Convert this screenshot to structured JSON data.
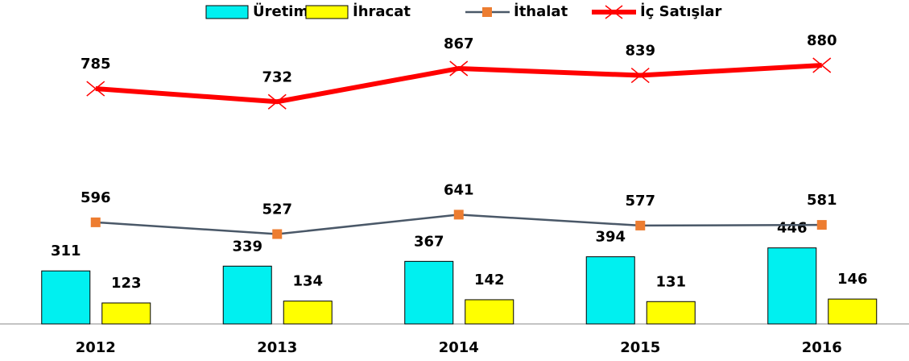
{
  "chart_data": {
    "type": "bar_line",
    "categories": [
      "2012",
      "2013",
      "2014",
      "2015",
      "2016"
    ],
    "series": [
      {
        "name": "Üretim",
        "type": "bar",
        "color": "#00f0f0",
        "values": [
          311,
          339,
          367,
          394,
          446
        ]
      },
      {
        "name": "İhracat",
        "type": "bar",
        "color": "#ffff00",
        "values": [
          123,
          134,
          142,
          131,
          146
        ]
      },
      {
        "name": "İthalat",
        "type": "line",
        "color": "#4a5868",
        "marker_color": "#ed7d31",
        "values": [
          596,
          527,
          641,
          577,
          581
        ]
      },
      {
        "name": "İç Satışlar",
        "type": "line",
        "axis": "y2",
        "color": "#ff0000",
        "values": [
          785,
          732,
          867,
          839,
          880
        ]
      }
    ],
    "ylim": [
      0,
      1900
    ],
    "y2lim": [
      -170,
      1145
    ],
    "legend": "top",
    "grid": false
  }
}
